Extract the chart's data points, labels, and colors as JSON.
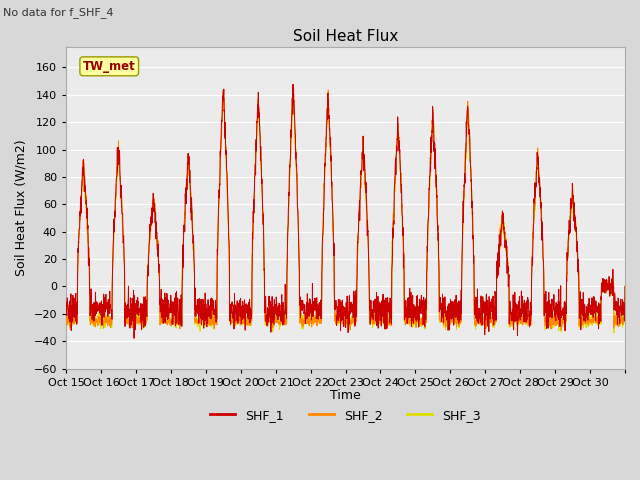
{
  "title": "Soil Heat Flux",
  "xlabel": "Time",
  "ylabel": "Soil Heat Flux (W/m2)",
  "note": "No data for f_SHF_4",
  "legend_label": "TW_met",
  "legend_box_color": "#FFFFA0",
  "legend_box_edge": "#999900",
  "legend_text_color": "#990000",
  "series_labels": [
    "SHF_1",
    "SHF_2",
    "SHF_3"
  ],
  "series_colors": [
    "#CC0000",
    "#FF8800",
    "#DDDD00"
  ],
  "ylim": [
    -60,
    175
  ],
  "yticks": [
    -60,
    -40,
    -20,
    0,
    20,
    40,
    60,
    80,
    100,
    120,
    140,
    160
  ],
  "xtick_labels": [
    "Oct 15",
    "Oct 16",
    "Oct 17",
    "Oct 18",
    "Oct 19",
    "Oct 20",
    "Oct 21",
    "Oct 22",
    "Oct 23",
    "Oct 24",
    "Oct 25",
    "Oct 26",
    "Oct 27",
    "Oct 28",
    "Oct 29",
    "Oct 30"
  ],
  "background_color": "#D8D8D8",
  "plot_bg_color": "#EBEBEB",
  "grid_color": "#FFFFFF",
  "num_days": 16,
  "points_per_day": 144,
  "day_amplitudes": [
    90,
    100,
    65,
    95,
    145,
    138,
    145,
    142,
    105,
    120,
    127,
    133,
    50,
    97,
    70,
    0
  ],
  "night_base": -22,
  "figsize": [
    6.4,
    4.8
  ],
  "dpi": 100
}
